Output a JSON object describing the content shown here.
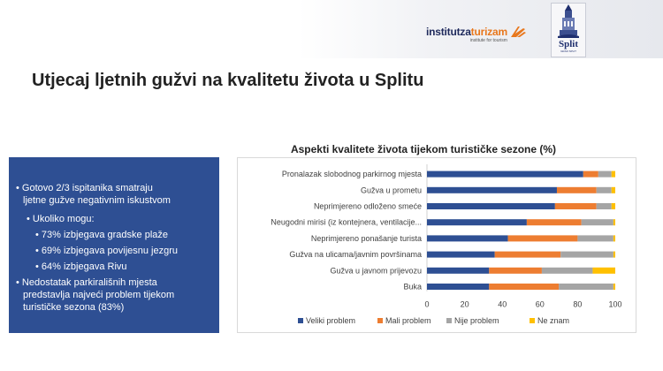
{
  "header": {
    "institute_logo": {
      "word_part1": "institutza",
      "word_part2": "turizam",
      "subtitle": "institute for tourism"
    },
    "city_logo": {
      "text": "Split",
      "subtitle": "GRAD SPLIT"
    }
  },
  "slide": {
    "title": "Utjecaj ljetnih gužvi na kvalitetu života u Splitu"
  },
  "summary_box": {
    "lines": [
      "• Gotovo 2/3 ispitanika smatraju",
      "ljetne gužve negativnim iskustvom",
      "•  Ukoliko mogu:",
      "• 73% izbjegava gradske plaže",
      "• 69% izbjegava povijesnu jezgru",
      "• 64% izbjegava Rivu",
      "• Nedostatak parkirališnih mjesta",
      "predstavlja najveći problem tijekom",
      "turističke sezona (83%)"
    ]
  },
  "colors": {
    "veliki": "#2e4f93",
    "mali": "#ed7d31",
    "nije": "#a5a5a5",
    "ne_znam": "#ffc000",
    "summary_box": "#2e4f93"
  },
  "chart_data": {
    "type": "bar",
    "orientation": "horizontal",
    "stacked": true,
    "title": "Aspekti kvalitete života tijekom turističke sezone (%)",
    "categories": [
      "Pronalazak slobodnog parkirnog mjesta",
      "Gužva u prometu",
      "Neprimjereno odloženo smeće",
      "Neugodni mirisi (iz kontejnera, ventilacije...",
      "Neprimjereno ponašanje turista",
      "Gužva na ulicama/javnim površinama",
      "Gužva u javnom prijevozu",
      "Buka"
    ],
    "series": [
      {
        "name": "Veliki problem",
        "values": [
          83,
          69,
          68,
          53,
          43,
          36,
          33,
          33
        ]
      },
      {
        "name": "Mali problem",
        "values": [
          8,
          21,
          22,
          29,
          37,
          35,
          28,
          37
        ]
      },
      {
        "name": "Nije problem",
        "values": [
          7,
          8,
          8,
          17,
          19,
          28,
          27,
          29
        ]
      },
      {
        "name": "Ne znam",
        "values": [
          2,
          2,
          2,
          1,
          1,
          1,
          12,
          1
        ]
      }
    ],
    "xlim": [
      0,
      100
    ],
    "xticks": [
      "0",
      "20",
      "40",
      "60",
      "80",
      "100"
    ],
    "grid": false,
    "legend_position": "bottom"
  }
}
